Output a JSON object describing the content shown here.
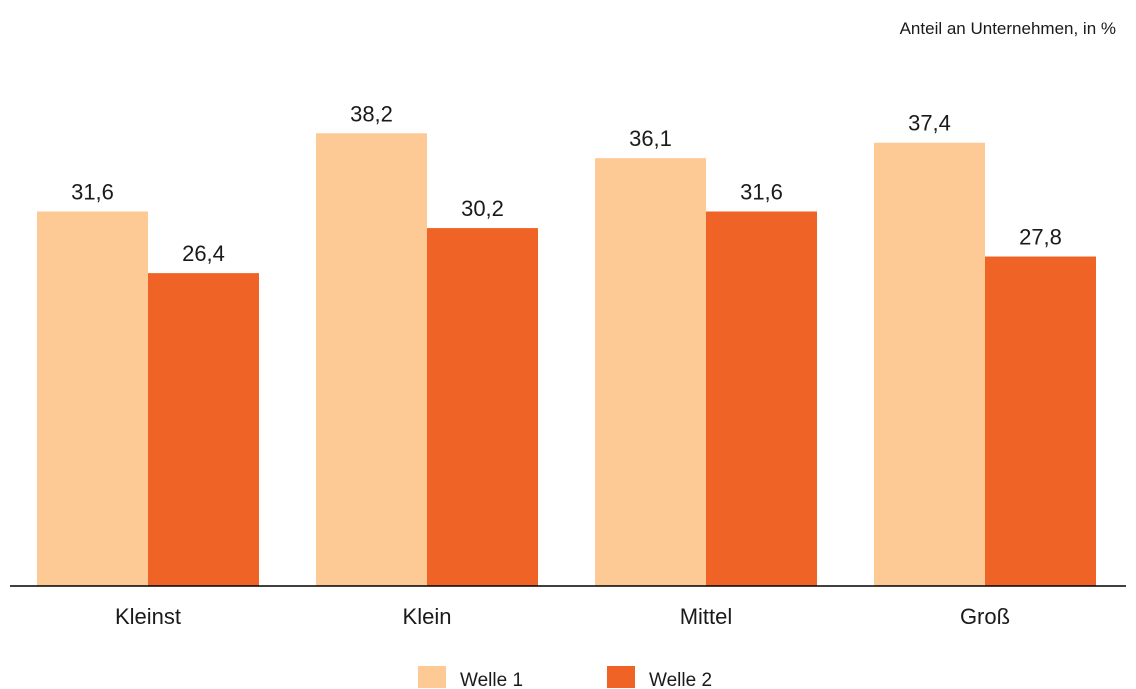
{
  "chart_data": {
    "type": "bar",
    "unit_note": "Anteil an Unternehmen, in %",
    "categories": [
      "Kleinst",
      "Klein",
      "Mittel",
      "Groß"
    ],
    "series": [
      {
        "name": "Welle 1",
        "color": "#fdc995",
        "values": [
          31.6,
          38.2,
          36.1,
          37.4
        ],
        "labels": [
          "31,6",
          "38,2",
          "36,1",
          "37,4"
        ]
      },
      {
        "name": "Welle 2",
        "color": "#ef6426",
        "values": [
          26.4,
          30.2,
          31.6,
          27.8
        ],
        "labels": [
          "26,4",
          "30,2",
          "31,6",
          "27,8"
        ]
      }
    ],
    "ylim": [
      0,
      48.6
    ],
    "grid": false,
    "legend_position": "bottom-center"
  }
}
